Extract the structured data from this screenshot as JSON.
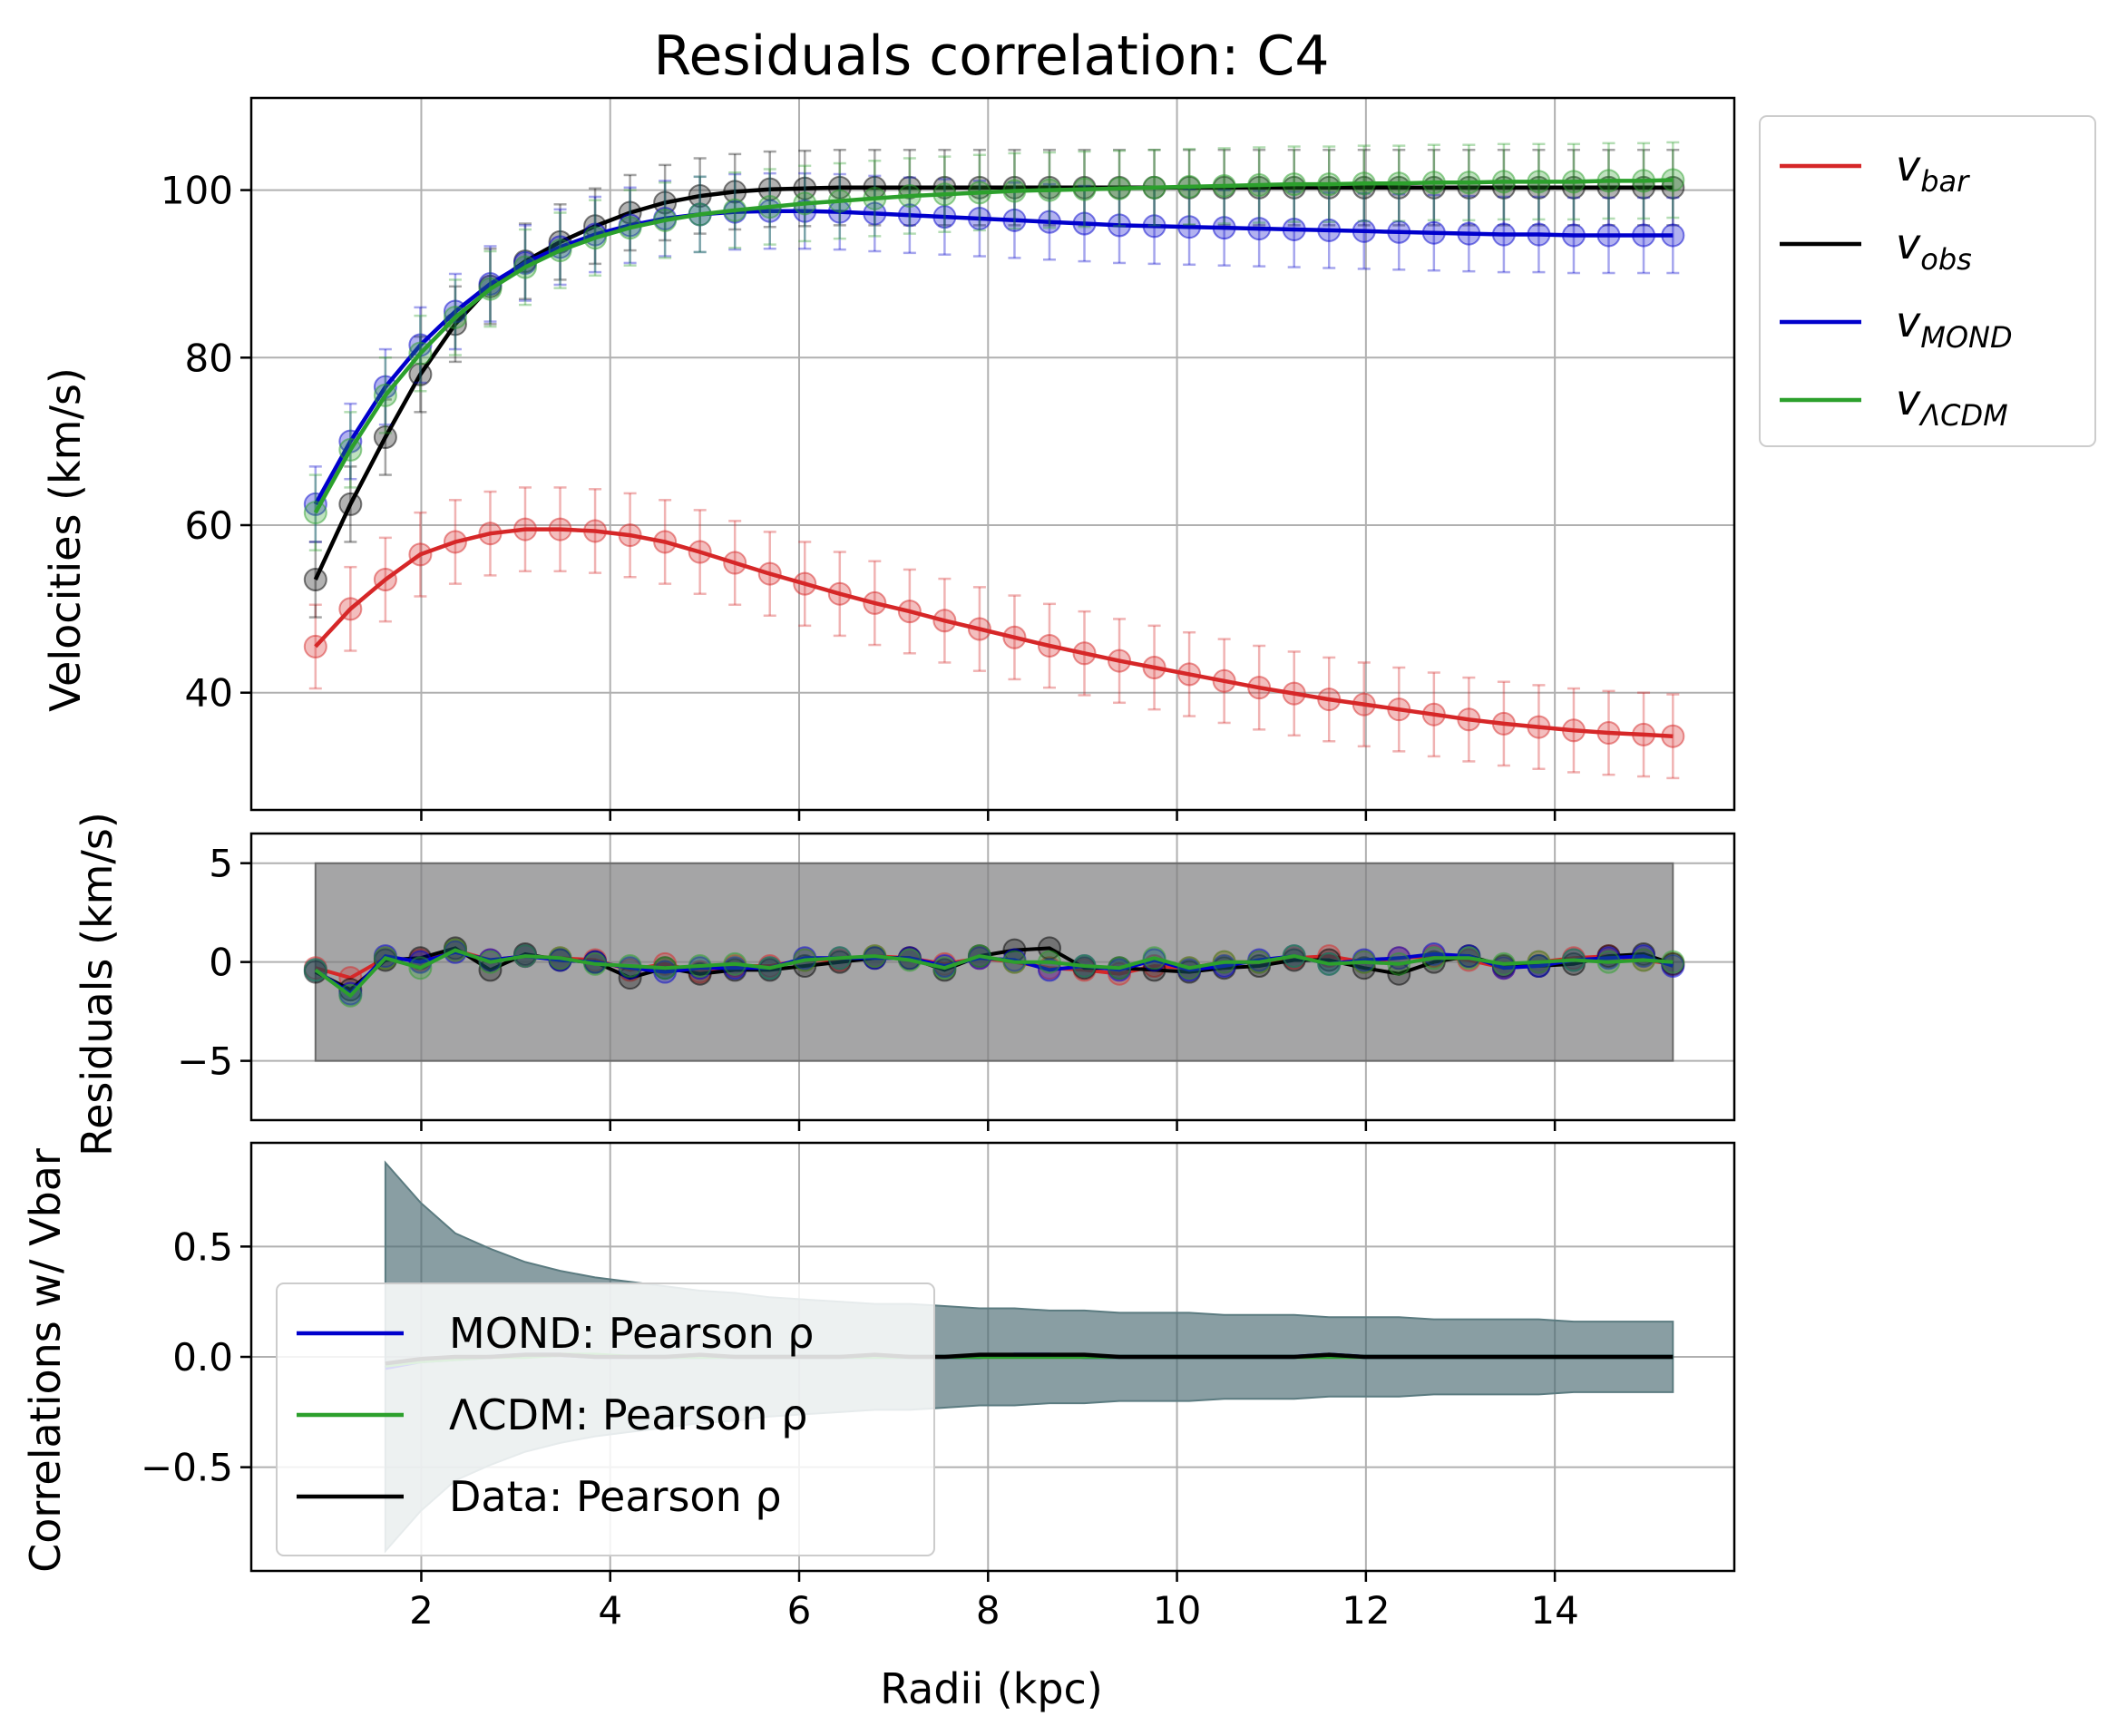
{
  "chart_data": {
    "type": "line",
    "title": "Residuals correlation: C4",
    "xlabel": "Radii (kpc)",
    "xlim": [
      0.2,
      15.9
    ],
    "xticks": [
      2,
      4,
      6,
      8,
      10,
      12,
      14
    ],
    "x": [
      0.88,
      1.25,
      1.62,
      1.99,
      2.36,
      2.73,
      3.1,
      3.47,
      3.84,
      4.21,
      4.58,
      4.95,
      5.32,
      5.69,
      6.06,
      6.43,
      6.8,
      7.17,
      7.54,
      7.91,
      8.28,
      8.65,
      9.02,
      9.39,
      9.76,
      10.13,
      10.5,
      10.87,
      11.24,
      11.61,
      11.98,
      12.35,
      12.72,
      13.09,
      13.46,
      13.83,
      14.2,
      14.57,
      14.94,
      15.25
    ],
    "panels": [
      {
        "id": "velocities",
        "ylabel": "Velocities (km/s)",
        "ylim": [
          26,
          111
        ],
        "yticks": [
          40,
          60,
          80,
          100
        ],
        "grid": true,
        "series": [
          {
            "name": "v_bar",
            "color": "#d62728",
            "err": 5,
            "values": [
              45.5,
              50,
              53.5,
              56.5,
              58,
              59,
              59.5,
              59.5,
              59.3,
              58.8,
              58,
              56.8,
              55.5,
              54.2,
              53,
              51.8,
              50.7,
              49.7,
              48.6,
              47.6,
              46.6,
              45.6,
              44.7,
              43.8,
              43,
              42.2,
              41.4,
              40.6,
              39.9,
              39.2,
              38.6,
              38,
              37.4,
              36.8,
              36.3,
              35.9,
              35.5,
              35.2,
              35,
              34.8
            ]
          },
          {
            "name": "v_obs",
            "color": "#000000",
            "err": 4.5,
            "values": [
              53.5,
              62.5,
              70.5,
              78,
              84,
              88.5,
              91.5,
              93.8,
              95.7,
              97.3,
              98.5,
              99.3,
              99.8,
              100.1,
              100.2,
              100.3,
              100.3,
              100.3,
              100.3,
              100.3,
              100.3,
              100.3,
              100.3,
              100.3,
              100.3,
              100.3,
              100.3,
              100.3,
              100.3,
              100.3,
              100.3,
              100.3,
              100.3,
              100.3,
              100.3,
              100.3,
              100.3,
              100.3,
              100.3,
              100.3
            ]
          },
          {
            "name": "v_MOND",
            "color": "#0000cc",
            "err": 4.5,
            "values": [
              62.5,
              70,
              76.5,
              81.5,
              85.5,
              88.8,
              91.3,
              93.2,
              94.7,
              95.8,
              96.6,
              97.1,
              97.4,
              97.5,
              97.5,
              97.4,
              97.2,
              97,
              96.8,
              96.6,
              96.4,
              96.2,
              96,
              95.8,
              95.7,
              95.6,
              95.5,
              95.4,
              95.3,
              95.2,
              95.1,
              95,
              94.9,
              94.8,
              94.7,
              94.7,
              94.6,
              94.6,
              94.6,
              94.6
            ]
          },
          {
            "name": "v_ΛCDM",
            "color": "#2ca02c",
            "err": 4.5,
            "values": [
              61.5,
              69,
              75.5,
              80.5,
              84.8,
              88.2,
              90.8,
              92.8,
              94.3,
              95.5,
              96.4,
              97.1,
              97.6,
              98,
              98.4,
              98.7,
              99,
              99.3,
              99.5,
              99.7,
              99.9,
              100,
              100.1,
              100.2,
              100.3,
              100.4,
              100.5,
              100.6,
              100.7,
              100.7,
              100.8,
              100.8,
              100.9,
              100.9,
              101,
              101,
              101,
              101.1,
              101.1,
              101.2
            ]
          }
        ],
        "legend": {
          "placement": "outside-right",
          "entries": [
            {
              "base": "v",
              "sub": "bar",
              "color": "#d62728"
            },
            {
              "base": "v",
              "sub": "obs",
              "color": "#000000"
            },
            {
              "base": "v",
              "sub": "MOND",
              "color": "#0000cc"
            },
            {
              "base": "v",
              "sub": "ΛCDM",
              "color": "#2ca02c"
            }
          ]
        }
      },
      {
        "id": "residuals",
        "ylabel": "Residuals (km/s)",
        "ylim": [
          -8,
          6.5
        ],
        "yticks": [
          -5,
          0,
          5
        ],
        "ytick_labels": [
          "−5",
          "0",
          "5"
        ],
        "grid": true,
        "band": [
          -5,
          5
        ],
        "series": [
          {
            "name": "v_bar",
            "color": "#d62728",
            "values": [
              -0.3,
              -0.8,
              0.2,
              0.1,
              0.6,
              0.1,
              0.3,
              0.2,
              0.1,
              -0.4,
              -0.1,
              -0.5,
              -0.2,
              -0.2,
              0.1,
              0.1,
              0.3,
              0.2,
              -0.1,
              0.2,
              0,
              -0.3,
              -0.4,
              -0.6,
              -0.2,
              -0.3,
              0,
              0,
              0.2,
              0.3,
              0,
              0.2,
              0.3,
              0.1,
              -0.3,
              0,
              0.2,
              0.3,
              0.1,
              -0.1
            ]
          },
          {
            "name": "v_obs",
            "color": "#000000",
            "values": [
              -0.5,
              -1.4,
              0.1,
              0.2,
              0.7,
              -0.4,
              0.4,
              0.1,
              0,
              -0.8,
              -0.3,
              -0.6,
              -0.4,
              -0.4,
              -0.2,
              0,
              0.2,
              0.2,
              -0.4,
              0.3,
              0.6,
              0.7,
              -0.3,
              -0.3,
              -0.4,
              -0.5,
              -0.3,
              -0.2,
              0.1,
              0.1,
              -0.3,
              -0.6,
              0,
              0.3,
              -0.2,
              -0.2,
              -0.1,
              0.3,
              0.4,
              -0.1
            ]
          },
          {
            "name": "v_MOND",
            "color": "#0000cc",
            "values": [
              -0.4,
              -1.6,
              0.3,
              0,
              0.5,
              0.1,
              0.3,
              0.1,
              0,
              -0.3,
              -0.5,
              -0.3,
              -0.3,
              -0.3,
              0.2,
              0.2,
              0.2,
              0.2,
              -0.2,
              0.2,
              0.1,
              -0.4,
              -0.2,
              -0.4,
              0.1,
              -0.4,
              -0.2,
              0.1,
              0.3,
              -0.1,
              0.1,
              0.2,
              0.4,
              0.3,
              -0.3,
              -0.2,
              0.1,
              0.2,
              0.3,
              -0.2
            ]
          },
          {
            "name": "v_ΛCDM",
            "color": "#2ca02c",
            "values": [
              -0.4,
              -1.7,
              0.2,
              -0.3,
              0.6,
              0,
              0.3,
              0.2,
              -0.1,
              -0.2,
              -0.3,
              -0.2,
              -0.1,
              -0.3,
              0.1,
              0.2,
              0.3,
              0.1,
              -0.3,
              0.3,
              0,
              0,
              -0.2,
              -0.3,
              0.2,
              -0.3,
              0,
              0,
              0.3,
              -0.1,
              0,
              -0.1,
              0.2,
              0.2,
              -0.1,
              0,
              0.1,
              0,
              0.1,
              0
            ]
          }
        ]
      },
      {
        "id": "correlations",
        "ylabel": "Correlations w/ Vbar",
        "ylim": [
          -0.97,
          0.97
        ],
        "yticks": [
          -0.5,
          0.0,
          0.5
        ],
        "ytick_labels": [
          "−0.5",
          "0.0",
          "0.5"
        ],
        "grid": true,
        "band_x": [
          1.62,
          1.99,
          2.36,
          2.73,
          3.1,
          3.47,
          3.84,
          4.21,
          4.58,
          4.95,
          5.32,
          5.69,
          6.06,
          6.43,
          6.8,
          7.17,
          7.54,
          7.91,
          8.28,
          8.65,
          9.02,
          9.39,
          9.76,
          10.13,
          10.5,
          10.87,
          11.24,
          11.61,
          11.98,
          12.35,
          12.72,
          13.09,
          13.46,
          13.83,
          14.2,
          14.57,
          14.94,
          15.25
        ],
        "band_upper": [
          0.88,
          0.7,
          0.56,
          0.49,
          0.43,
          0.39,
          0.36,
          0.34,
          0.32,
          0.3,
          0.29,
          0.27,
          0.26,
          0.25,
          0.24,
          0.24,
          0.23,
          0.22,
          0.22,
          0.21,
          0.21,
          0.2,
          0.2,
          0.2,
          0.19,
          0.19,
          0.19,
          0.18,
          0.18,
          0.18,
          0.17,
          0.17,
          0.17,
          0.17,
          0.16,
          0.16,
          0.16,
          0.16
        ],
        "series": [
          {
            "name": "MOND: Pearson ρ",
            "color": "#0000cc",
            "x": [
              1.62,
              1.99,
              2.36,
              2.73,
              3.1,
              3.47,
              3.84,
              4.21,
              4.58,
              4.95,
              5.32,
              5.69,
              6.06,
              6.43,
              6.8,
              7.17,
              7.54,
              7.91,
              8.28,
              8.65,
              9.02,
              9.39,
              9.76,
              10.13,
              10.5,
              10.87,
              11.24,
              11.61,
              11.98,
              12.35,
              12.72,
              13.09,
              13.46,
              13.83,
              14.2,
              14.57,
              14.94,
              15.25
            ],
            "values": [
              -0.05,
              -0.02,
              -0.01,
              0,
              0.01,
              0.01,
              0,
              0,
              0,
              0,
              0,
              0,
              0,
              0,
              0,
              0,
              0,
              0,
              0.01,
              0.01,
              0,
              0,
              0,
              0,
              0,
              0,
              0,
              0.01,
              0,
              0,
              0,
              0,
              0,
              0,
              0,
              0,
              0,
              0
            ]
          },
          {
            "name": "ΛCDM: Pearson ρ",
            "color": "#2ca02c",
            "x": [
              1.62,
              1.99,
              2.36,
              2.73,
              3.1,
              3.47,
              3.84,
              4.21,
              4.58,
              4.95,
              5.32,
              5.69,
              6.06,
              6.43,
              6.8,
              7.17,
              7.54,
              7.91,
              8.28,
              8.65,
              9.02,
              9.39,
              9.76,
              10.13,
              10.5,
              10.87,
              11.24,
              11.61,
              11.98,
              12.35,
              12.72,
              13.09,
              13.46,
              13.83,
              14.2,
              14.57,
              14.94,
              15.25
            ],
            "values": [
              -0.04,
              -0.02,
              -0.01,
              0,
              0,
              0.01,
              0.01,
              0,
              0,
              0,
              0,
              0,
              0,
              0,
              0,
              0,
              0,
              0,
              0,
              0,
              0,
              0,
              0,
              0,
              0,
              0,
              0,
              0,
              0,
              0,
              0,
              0,
              0,
              0,
              0,
              0,
              0,
              0
            ]
          },
          {
            "name": "Data: Pearson ρ",
            "color": "#000000",
            "x": [
              1.62,
              1.99,
              2.36,
              2.73,
              3.1,
              3.47,
              3.84,
              4.21,
              4.58,
              4.95,
              5.32,
              5.69,
              6.06,
              6.43,
              6.8,
              7.17,
              7.54,
              7.91,
              8.28,
              8.65,
              9.02,
              9.39,
              9.76,
              10.13,
              10.5,
              10.87,
              11.24,
              11.61,
              11.98,
              12.35,
              12.72,
              13.09,
              13.46,
              13.83,
              14.2,
              14.57,
              14.94,
              15.25
            ],
            "values": [
              -0.03,
              -0.01,
              0,
              0,
              0.01,
              0.01,
              0,
              0,
              0,
              0.01,
              0,
              0,
              0,
              0,
              0.01,
              0,
              0,
              0.01,
              0.01,
              0.01,
              0.01,
              0,
              0,
              0,
              0,
              0,
              0,
              0.01,
              0,
              0,
              0,
              0,
              0,
              0,
              0,
              0,
              0,
              0
            ]
          }
        ],
        "legend": {
          "placement": "lower-left",
          "entries": [
            {
              "label": "MOND: Pearson ρ",
              "color": "#0000cc"
            },
            {
              "label": "ΛCDM: Pearson ρ",
              "color": "#2ca02c"
            },
            {
              "label": "Data: Pearson ρ",
              "color": "#000000"
            }
          ]
        }
      }
    ]
  }
}
